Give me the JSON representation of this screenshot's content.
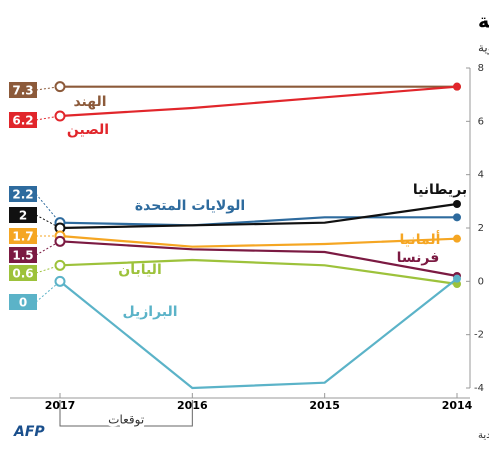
{
  "chart_data": {
    "type": "line",
    "title": "توقعات منظمة التعاون والتنمية الاقتصادية",
    "subtitle": "النمو السنوي بالنسبة المئوية",
    "categories": [
      "2017",
      "2016",
      "2015",
      "2014"
    ],
    "forecast_label": "توقعات",
    "source": "المصدر: منظمة التعاون والتنمية الاقتصادية",
    "logo": "AFP",
    "ylim": [
      -4,
      8
    ],
    "yticks": [
      -4,
      -2,
      0,
      2,
      4,
      6,
      8
    ],
    "series": [
      {
        "name": "الهند",
        "color": "#8c5a3a",
        "values": [
          7.3,
          7.3,
          7.3,
          7.3
        ]
      },
      {
        "name": "الصين",
        "color": "#e1262b",
        "values": [
          6.2,
          6.5,
          6.9,
          7.3
        ]
      },
      {
        "name": "الولايات المتحدة",
        "color": "#2e6b9e",
        "values": [
          2.2,
          2.1,
          2.4,
          2.4
        ]
      },
      {
        "name": "بريطانيا",
        "color": "#111111",
        "values": [
          2,
          2.1,
          2.2,
          2.9
        ]
      },
      {
        "name": "ألمانيا",
        "color": "#f5a623",
        "values": [
          1.7,
          1.3,
          1.4,
          1.6
        ]
      },
      {
        "name": "فرنسا",
        "color": "#7b1a42",
        "values": [
          1.5,
          1.2,
          1.1,
          0.2
        ]
      },
      {
        "name": "اليابان",
        "color": "#9dc23b",
        "values": [
          0.6,
          0.8,
          0.6,
          -0.1
        ]
      },
      {
        "name": "البرازيل",
        "color": "#5bb3c8",
        "values": [
          0,
          -4,
          -3.8,
          0.1
        ]
      }
    ]
  }
}
